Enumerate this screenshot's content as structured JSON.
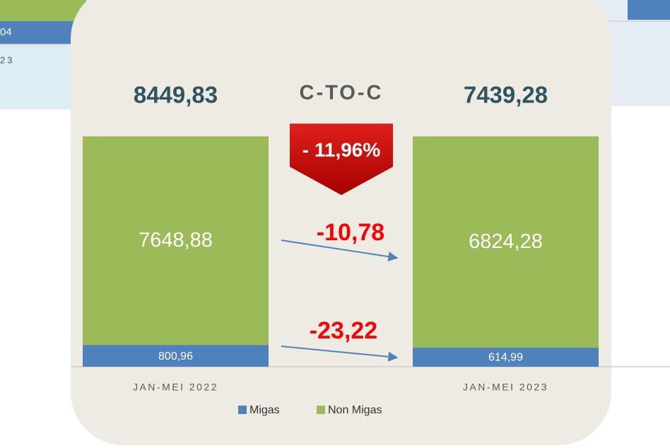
{
  "chart_data": {
    "type": "bar",
    "stacked": "percent",
    "categories": [
      "JAN-MEI 2022",
      "JAN-MEI 2023"
    ],
    "series": [
      {
        "name": "Migas",
        "color": "#4f81bd",
        "values": [
          800.96,
          614.99
        ],
        "value_labels": [
          "800,96",
          "614,99"
        ]
      },
      {
        "name": "Non Migas",
        "color": "#9bbb59",
        "values": [
          7648.88,
          6824.28
        ],
        "value_labels": [
          "7648,88",
          "6824,28"
        ]
      }
    ],
    "totals": [
      8449.83,
      7439.28
    ],
    "total_labels": [
      "8449,83",
      "7439,28"
    ],
    "title": "C-TO-C",
    "total_change": "- 11,96%",
    "series_changes": [
      "-23,22",
      "-10,78"
    ],
    "legend": "bottom"
  },
  "background_texts": [
    "04",
    "23"
  ]
}
